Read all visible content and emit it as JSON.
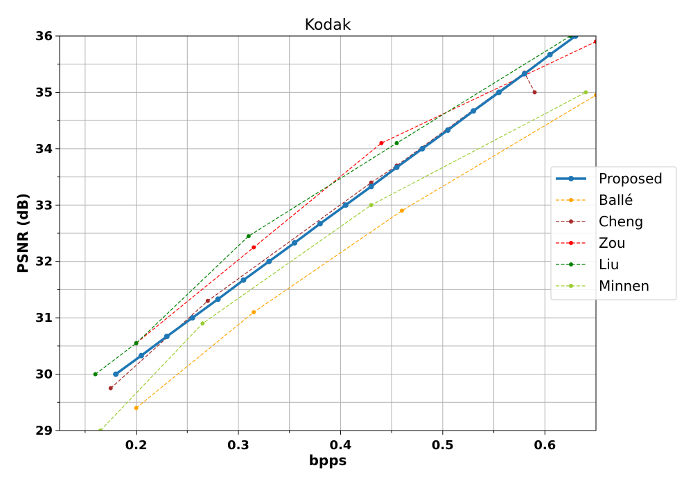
{
  "chart_data": {
    "type": "line",
    "title": "Kodak",
    "xlabel": "bpps",
    "ylabel": "PSNR (dB)",
    "xlim": [
      0.125,
      0.65
    ],
    "ylim": [
      29,
      36
    ],
    "xticks": [
      0.2,
      0.3,
      0.4,
      0.5,
      0.6
    ],
    "xtick_labels": [
      "0.2",
      "0.3",
      "0.4",
      "0.5",
      "0.6"
    ],
    "xminor": [
      0.15,
      0.25,
      0.35,
      0.45,
      0.55
    ],
    "yticks": [
      29,
      30,
      31,
      32,
      33,
      34,
      35,
      36
    ],
    "ytick_labels": [
      "29",
      "30",
      "31",
      "32",
      "33",
      "34",
      "35",
      "36"
    ],
    "yminor": [
      29.5,
      30.5,
      31.5,
      32.5,
      33.5,
      34.5,
      35.5
    ],
    "grid": true,
    "legend_position": "center-right",
    "series": [
      {
        "name": "Proposed",
        "color": "#1f77b4",
        "style": "solid",
        "x": [
          0.18,
          0.205,
          0.23,
          0.255,
          0.28,
          0.305,
          0.33,
          0.355,
          0.38,
          0.405,
          0.43,
          0.455,
          0.48,
          0.505,
          0.53,
          0.555,
          0.58,
          0.605,
          0.63
        ],
        "y": [
          30.0,
          30.33,
          30.67,
          31.0,
          31.33,
          31.67,
          32.0,
          32.33,
          32.67,
          33.0,
          33.33,
          33.67,
          34.0,
          34.33,
          34.67,
          35.0,
          35.33,
          35.67,
          36.0
        ]
      },
      {
        "name": "Ballé",
        "color": "#ffa500",
        "style": "dashed",
        "x": [
          0.2,
          0.315,
          0.46,
          0.65
        ],
        "y": [
          29.4,
          31.1,
          32.9,
          34.95
        ]
      },
      {
        "name": "Cheng",
        "color": "#a52a2a",
        "style": "dashed",
        "x": [
          0.175,
          0.27,
          0.43,
          0.455,
          0.58,
          0.59
        ],
        "y": [
          29.75,
          31.3,
          33.4,
          33.7,
          35.35,
          35.0
        ]
      },
      {
        "name": "Zou",
        "color": "#ff0000",
        "style": "dashed",
        "x": [
          0.2,
          0.315,
          0.44,
          0.65
        ],
        "y": [
          30.55,
          32.25,
          34.1,
          35.9
        ]
      },
      {
        "name": "Liu",
        "color": "#008000",
        "style": "dashed",
        "x": [
          0.16,
          0.2,
          0.31,
          0.455,
          0.625
        ],
        "y": [
          30.0,
          30.55,
          32.45,
          34.1,
          36.0
        ]
      },
      {
        "name": "Minnen",
        "color": "#9acd32",
        "style": "dashed",
        "x": [
          0.165,
          0.265,
          0.43,
          0.64
        ],
        "y": [
          29.0,
          30.9,
          33.0,
          35.0
        ]
      }
    ]
  }
}
